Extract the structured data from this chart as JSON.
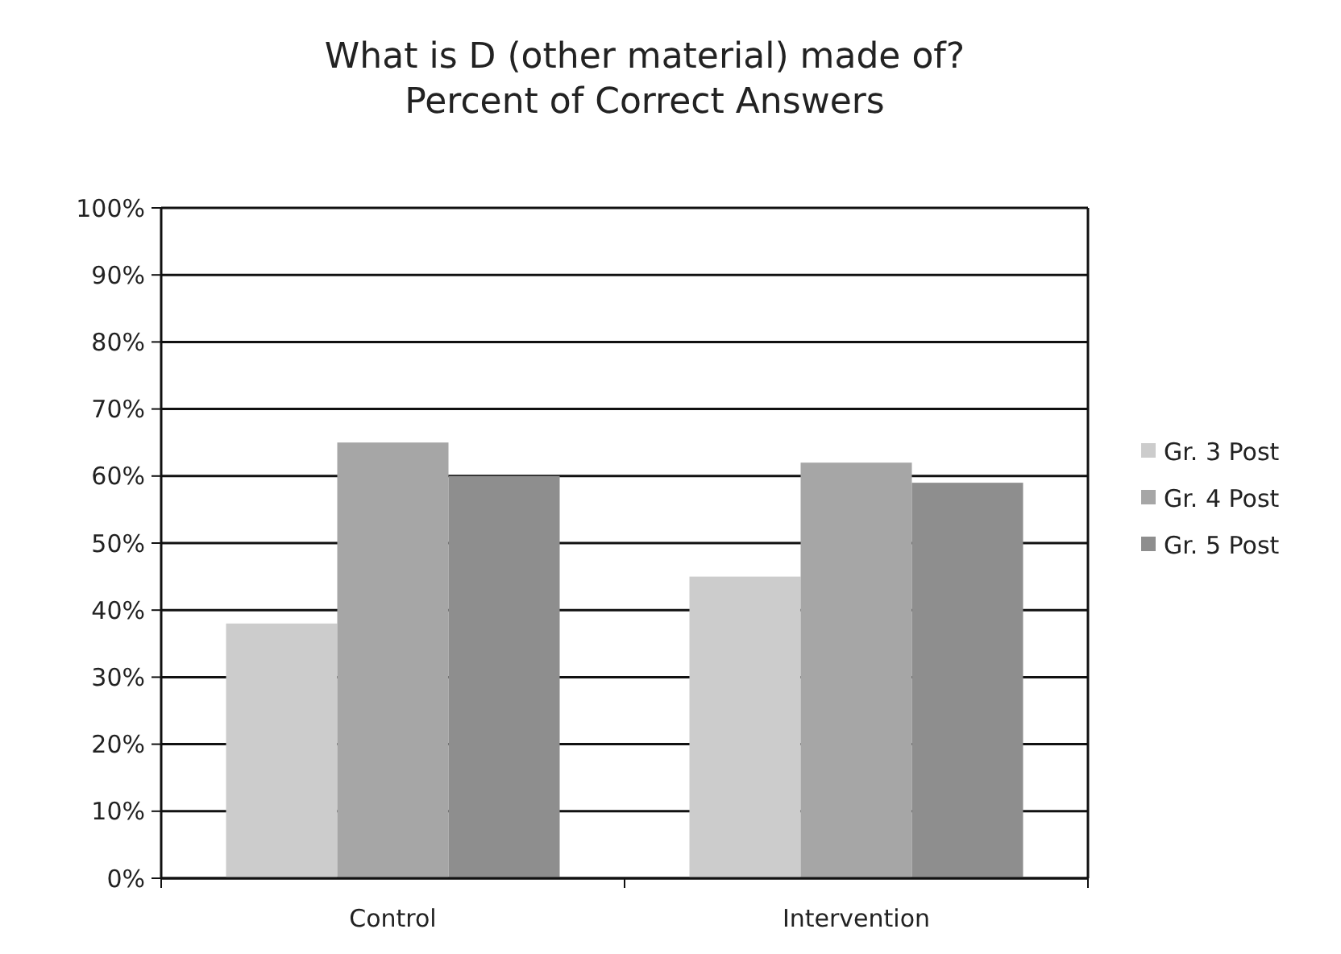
{
  "chart_data": {
    "type": "bar",
    "title": "What is D (other material) made of?\nPercent of Correct Answers",
    "categories": [
      "Control",
      "Intervention"
    ],
    "series": [
      {
        "name": "Gr. 3 Post",
        "color": "#cccccc",
        "values": [
          38,
          45
        ]
      },
      {
        "name": "Gr. 4 Post",
        "color": "#a6a6a6",
        "values": [
          65,
          62
        ]
      },
      {
        "name": "Gr. 5 Post",
        "color": "#8e8e8e",
        "values": [
          60,
          59
        ]
      }
    ],
    "ylim": [
      0,
      100
    ],
    "yticks": [
      {
        "value": 0,
        "label": "0%"
      },
      {
        "value": 10,
        "label": "10%"
      },
      {
        "value": 20,
        "label": "20%"
      },
      {
        "value": 30,
        "label": "30%"
      },
      {
        "value": 40,
        "label": "40%"
      },
      {
        "value": 50,
        "label": "50%"
      },
      {
        "value": 60,
        "label": "60%"
      },
      {
        "value": 70,
        "label": "70%"
      },
      {
        "value": 80,
        "label": "80%"
      },
      {
        "value": 90,
        "label": "90%"
      },
      {
        "value": 100,
        "label": "100%"
      }
    ],
    "grid": "y",
    "legend": "right"
  }
}
